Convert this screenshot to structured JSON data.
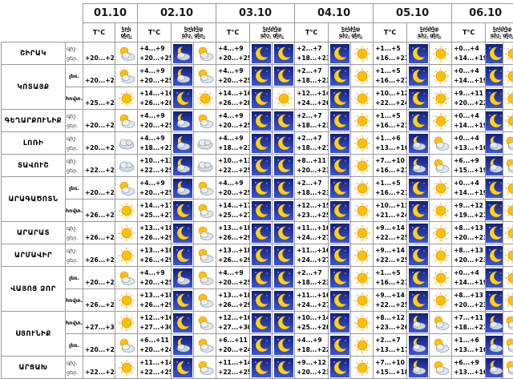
{
  "days": [
    "01.10",
    "02.10",
    "03.10",
    "04.10",
    "05.10",
    "06.10"
  ],
  "headers": {
    "t": "T°C",
    "night": "գիշ.",
    "day": "ցեր.",
    "sky": "երկինք",
    "sky_short": "երկ",
    "sky_short2": "ին"
  },
  "regions": [
    {
      "name": "ՇԻՐԱԿ",
      "subs": [
        {
          "sub": "",
          "first": {
            "night": "",
            "day": "+20...+25",
            "icon": "cloud-sun-icon"
          },
          "days": [
            {
              "night": "+4...+9",
              "day": "+20...+25",
              "n_icon": "cloud-moon-icon",
              "d_icon": "cloud-sun-icon"
            },
            {
              "night": "+4...+9",
              "day": "+20...+25",
              "n_icon": "moon-icon",
              "d_icon": "moon-icon"
            },
            {
              "night": "+2...+7",
              "day": "+18...+23",
              "n_icon": "moon-icon",
              "d_icon": "sun-icon"
            },
            {
              "night": "+1...+5",
              "day": "+16...+21",
              "n_icon": "moon-icon",
              "d_icon": "sun-icon"
            },
            {
              "night": "+0...+4",
              "day": "+14...+19",
              "n_icon": "moon-icon",
              "d_icon": "sun-icon"
            }
          ]
        }
      ]
    },
    {
      "name": "ԿՈՏԱՅՔ",
      "subs": [
        {
          "sub": "լեռ.",
          "first": {
            "night": "",
            "day": "+20...+25",
            "icon": "cloud-sun-icon"
          },
          "days": [
            {
              "night": "+4...+9",
              "day": "+20...+25",
              "n_icon": "cloud-moon-icon",
              "d_icon": "cloud-sun-icon"
            },
            {
              "night": "+4...+9",
              "day": "+20...+25",
              "n_icon": "moon-icon",
              "d_icon": "moon-icon"
            },
            {
              "night": "+2...+7",
              "day": "+18...+23",
              "n_icon": "moon-icon",
              "d_icon": "sun-icon"
            },
            {
              "night": "+1...+5",
              "day": "+16...+21",
              "n_icon": "moon-icon",
              "d_icon": "sun-icon"
            },
            {
              "night": "+0...+4",
              "day": "+14...+19",
              "n_icon": "moon-icon",
              "d_icon": "sun-icon"
            }
          ]
        },
        {
          "sub": "հովտ.",
          "first": {
            "night": "",
            "day": "+25...+28",
            "icon": "sun-icon"
          },
          "days": [
            {
              "night": "+14...+16",
              "day": "+26...+28",
              "n_icon": "moon-icon",
              "d_icon": "sun-icon"
            },
            {
              "night": "+14...+16",
              "day": "+26...+28",
              "n_icon": "moon-icon",
              "d_icon": "sun-icon"
            },
            {
              "night": "+12...+14",
              "day": "+24...+26",
              "n_icon": "moon-icon",
              "d_icon": "sun-icon"
            },
            {
              "night": "+10...+12",
              "day": "+22...+24",
              "n_icon": "moon-icon",
              "d_icon": "sun-icon"
            },
            {
              "night": "+9...+11",
              "day": "+20...+22",
              "n_icon": "moon-icon",
              "d_icon": "sun-icon"
            }
          ]
        }
      ]
    },
    {
      "name": "ԳԵՂԱՐՔՈՒՆԻՔ",
      "subs": [
        {
          "sub": "",
          "first": {
            "night": "",
            "day": "+20...+25",
            "icon": "cloud-sun-icon"
          },
          "days": [
            {
              "night": "+4...+9",
              "day": "+20...+25",
              "n_icon": "cloud-moon-icon",
              "d_icon": "cloud-sun-icon"
            },
            {
              "night": "+4...+9",
              "day": "+20...+25",
              "n_icon": "moon-icon",
              "d_icon": "moon-icon"
            },
            {
              "night": "+2...+7",
              "day": "+18...+23",
              "n_icon": "moon-icon",
              "d_icon": "sun-icon"
            },
            {
              "night": "+1...+5",
              "day": "+16...+21",
              "n_icon": "moon-icon",
              "d_icon": "sun-icon"
            },
            {
              "night": "+0...+4",
              "day": "+14...+19",
              "n_icon": "moon-icon",
              "d_icon": "sun-icon"
            }
          ]
        }
      ]
    },
    {
      "name": "ԼՈՌԻ",
      "subs": [
        {
          "sub": "",
          "first": {
            "night": "",
            "day": "+20...+24",
            "icon": "cloud-icon"
          },
          "days": [
            {
              "night": "+4...+9",
              "day": "+18...+23",
              "n_icon": "cloud-moon-icon",
              "d_icon": "cloud-icon"
            },
            {
              "night": "+4...+9",
              "day": "+18...+23",
              "n_icon": "moon-icon",
              "d_icon": "moon-icon"
            },
            {
              "night": "+2...+7",
              "day": "+18...+21",
              "n_icon": "moon-icon",
              "d_icon": "sun-icon"
            },
            {
              "night": "+1...+6",
              "day": "+13...+16",
              "n_icon": "cloud-moon-icon",
              "d_icon": "cloud-sun-icon"
            },
            {
              "night": "+0...+4",
              "day": "+13...+16",
              "n_icon": "cloud-moon-icon",
              "d_icon": "cloud-sun-icon"
            }
          ]
        }
      ]
    },
    {
      "name": "ՏԱՎՈՒՇ",
      "subs": [
        {
          "sub": "",
          "first": {
            "night": "",
            "day": "+22...+26",
            "icon": "cloud-icon"
          },
          "days": [
            {
              "night": "+10...+13",
              "day": "+22...+25",
              "n_icon": "cloud-moon-icon",
              "d_icon": "cloud-icon"
            },
            {
              "night": "+10...+13",
              "day": "+22...+25",
              "n_icon": "moon-icon",
              "d_icon": "moon-icon"
            },
            {
              "night": "+8...+11",
              "day": "+20...+23",
              "n_icon": "moon-icon",
              "d_icon": "sun-icon"
            },
            {
              "night": "+7...+10",
              "day": "+16...+21",
              "n_icon": "cloud-moon-icon",
              "d_icon": "cloud-sun-icon"
            },
            {
              "night": "+6...+9",
              "day": "+15...+19",
              "n_icon": "cloud-moon-icon",
              "d_icon": "cloud-sun-icon"
            }
          ]
        }
      ]
    },
    {
      "name": "ԱՐԱԳԱԾՈՏՆ",
      "subs": [
        {
          "sub": "լեռ.",
          "first": {
            "night": "",
            "day": "+20...+25",
            "icon": "cloud-sun-icon"
          },
          "days": [
            {
              "night": "+4...+9",
              "day": "+20...+25",
              "n_icon": "cloud-moon-icon",
              "d_icon": "cloud-sun-icon"
            },
            {
              "night": "+4...+9",
              "day": "+20...+25",
              "n_icon": "moon-icon",
              "d_icon": "moon-icon"
            },
            {
              "night": "+2...+7",
              "day": "+18...+23",
              "n_icon": "moon-icon",
              "d_icon": "sun-icon"
            },
            {
              "night": "+1...+5",
              "day": "+16...+21",
              "n_icon": "moon-icon",
              "d_icon": "sun-icon"
            },
            {
              "night": "+0...+4",
              "day": "+14...+19",
              "n_icon": "moon-icon",
              "d_icon": "sun-icon"
            }
          ]
        },
        {
          "sub": "հովտ.",
          "first": {
            "night": "",
            "day": "+26...+28",
            "icon": "sun-icon"
          },
          "days": [
            {
              "night": "+14...+17",
              "day": "+25...+27",
              "n_icon": "moon-icon",
              "d_icon": "cloud-sun-icon"
            },
            {
              "night": "+14...+17",
              "day": "+25...+27",
              "n_icon": "moon-icon",
              "d_icon": "moon-icon"
            },
            {
              "night": "+12...+15",
              "day": "+23...+25",
              "n_icon": "moon-icon",
              "d_icon": "sun-icon"
            },
            {
              "night": "+10...+13",
              "day": "+21...+24",
              "n_icon": "moon-icon",
              "d_icon": "sun-icon"
            },
            {
              "night": "+9...+12",
              "day": "+19...+21",
              "n_icon": "moon-icon",
              "d_icon": "sun-icon"
            }
          ]
        }
      ]
    },
    {
      "name": "ԱՐԱՐԱՏ",
      "subs": [
        {
          "sub": "",
          "first": {
            "night": "",
            "day": "+26...+29",
            "icon": "sun-icon"
          },
          "days": [
            {
              "night": "+13...+18",
              "day": "+26...+29",
              "n_icon": "moon-icon",
              "d_icon": "cloud-sun-icon"
            },
            {
              "night": "+13...+18",
              "day": "+26...+29",
              "n_icon": "moon-icon",
              "d_icon": "moon-icon"
            },
            {
              "night": "+11...+16",
              "day": "+24...+27",
              "n_icon": "moon-icon",
              "d_icon": "sun-icon"
            },
            {
              "night": "+9...+14",
              "day": "+22...+25",
              "n_icon": "moon-icon",
              "d_icon": "sun-icon"
            },
            {
              "night": "+8...+13",
              "day": "+20...+23",
              "n_icon": "moon-icon",
              "d_icon": "sun-icon"
            }
          ]
        }
      ]
    },
    {
      "name": "ԱՐՄԱՎԻՐ",
      "subs": [
        {
          "sub": "",
          "first": {
            "night": "",
            "day": "+26...+29",
            "icon": "sun-icon"
          },
          "days": [
            {
              "night": "+13...+18",
              "day": "+26...+29",
              "n_icon": "moon-icon",
              "d_icon": "cloud-sun-icon"
            },
            {
              "night": "+13...+18",
              "day": "+26...+29",
              "n_icon": "moon-icon",
              "d_icon": "moon-icon"
            },
            {
              "night": "+11...+16",
              "day": "+24...+27",
              "n_icon": "moon-icon",
              "d_icon": "sun-icon"
            },
            {
              "night": "+9...+14",
              "day": "+22...+25",
              "n_icon": "moon-icon",
              "d_icon": "sun-icon"
            },
            {
              "night": "+8...+13",
              "day": "+20...+23",
              "n_icon": "moon-icon",
              "d_icon": "sun-icon"
            }
          ]
        }
      ]
    },
    {
      "name": "ՎԱՅՈՑ ՁՈՐ",
      "subs": [
        {
          "sub": "լեռ.",
          "first": {
            "night": "",
            "day": "+20...+25",
            "icon": "cloud-sun-icon"
          },
          "days": [
            {
              "night": "+4...+9",
              "day": "+20...+25",
              "n_icon": "cloud-moon-icon",
              "d_icon": "cloud-sun-icon"
            },
            {
              "night": "+4...+9",
              "day": "+20...+25",
              "n_icon": "moon-icon",
              "d_icon": "moon-icon"
            },
            {
              "night": "+2...+7",
              "day": "+18...+23",
              "n_icon": "moon-icon",
              "d_icon": "sun-icon"
            },
            {
              "night": "+1...+5",
              "day": "+16...+21",
              "n_icon": "moon-icon",
              "d_icon": "sun-icon"
            },
            {
              "night": "+0...+4",
              "day": "+14...+19",
              "n_icon": "moon-icon",
              "d_icon": "sun-icon"
            }
          ]
        },
        {
          "sub": "հովտ.",
          "first": {
            "night": "",
            "day": "+26...+29",
            "icon": "sun-icon"
          },
          "days": [
            {
              "night": "+13...+18",
              "day": "+26...+29",
              "n_icon": "moon-icon",
              "d_icon": "cloud-sun-icon"
            },
            {
              "night": "+13...+18",
              "day": "+26...+29",
              "n_icon": "moon-icon",
              "d_icon": "moon-icon"
            },
            {
              "night": "+11...+16",
              "day": "+24...+27",
              "n_icon": "moon-icon",
              "d_icon": "sun-icon"
            },
            {
              "night": "+9...+14",
              "day": "+22...+25",
              "n_icon": "moon-icon",
              "d_icon": "sun-icon"
            },
            {
              "night": "+8...+13",
              "day": "+20...+23",
              "n_icon": "moon-icon",
              "d_icon": "sun-icon"
            }
          ]
        }
      ]
    },
    {
      "name": "ՍՅՈՒՆԻՔ",
      "subs": [
        {
          "sub": "հովտ.",
          "first": {
            "night": "",
            "day": "+27...+30",
            "icon": "sun-icon"
          },
          "days": [
            {
              "night": "+12...+16",
              "day": "+27...+30",
              "n_icon": "moon-icon",
              "d_icon": "cloud-sun-icon"
            },
            {
              "night": "+12...+16",
              "day": "+27...+30",
              "n_icon": "moon-icon",
              "d_icon": "moon-icon"
            },
            {
              "night": "+10...+14",
              "day": "+25...+28",
              "n_icon": "moon-icon",
              "d_icon": "sun-icon"
            },
            {
              "night": "+8...+12",
              "day": "+23...+26",
              "n_icon": "cloud-moon-icon",
              "d_icon": "cloud-sun-icon"
            },
            {
              "night": "+7...+11",
              "day": "+18...+21",
              "n_icon": "cloud-moon-icon",
              "d_icon": "cloud-sun-icon"
            }
          ]
        },
        {
          "sub": "լեռ.",
          "first": {
            "night": "",
            "day": "+20...+24",
            "icon": "cloud-sun-icon"
          },
          "days": [
            {
              "night": "+6...+11",
              "day": "+20...+24",
              "n_icon": "cloud-moon-icon",
              "d_icon": "cloud-sun-icon"
            },
            {
              "night": "+6...+11",
              "day": "+20...+24",
              "n_icon": "moon-icon",
              "d_icon": "moon-icon"
            },
            {
              "night": "+4...+9",
              "day": "+18...+22",
              "n_icon": "moon-icon",
              "d_icon": "sun-icon"
            },
            {
              "night": "+2...+7",
              "day": "+13...+17",
              "n_icon": "cloud-moon-icon",
              "d_icon": "cloud-sun-icon"
            },
            {
              "night": "+1...+6",
              "day": "+13...+16",
              "n_icon": "cloud-moon-icon",
              "d_icon": "cloud-sun-icon"
            }
          ]
        }
      ]
    },
    {
      "name": "ԱՐՑԱԽ",
      "subs": [
        {
          "sub": "",
          "first": {
            "night": "",
            "day": "+22...+26",
            "icon": "sun-icon"
          },
          "days": [
            {
              "night": "+11...+14",
              "day": "+22...+25",
              "n_icon": "moon-icon",
              "d_icon": "cloud-sun-icon"
            },
            {
              "night": "+11...+14",
              "day": "+22...+25",
              "n_icon": "moon-icon",
              "d_icon": "moon-icon"
            },
            {
              "night": "+9...+12",
              "day": "+20...+23",
              "n_icon": "moon-icon",
              "d_icon": "sun-icon"
            },
            {
              "night": "+7...+10",
              "day": "+15...+18",
              "n_icon": "cloud-moon-icon",
              "d_icon": "cloud-sun-icon"
            },
            {
              "night": "+6...+9",
              "day": "+13...+16",
              "n_icon": "cloud-moon-icon",
              "d_icon": "cloud-sun-icon"
            }
          ]
        }
      ]
    }
  ]
}
